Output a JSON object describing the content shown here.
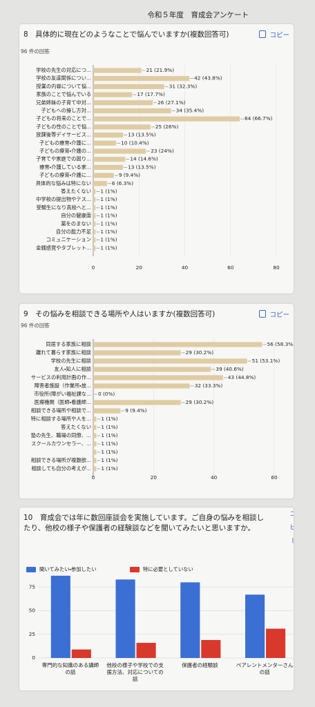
{
  "header": {
    "title": "令和５年度　育成会アンケート"
  },
  "chart_data": [
    {
      "type": "hbar",
      "title": "8　具体的に現在どのようなことで悩んでいますか(複数回答可)",
      "subtitle": "96 件の回答",
      "copy": "コピー",
      "categories": [
        "学校の先生の対応につ...",
        "学校の友達関係につい...",
        "授業の内容について悩...",
        "家族のことで悩んでいる",
        "兄弟姉妹の子育て中対...",
        "子どもへの接し方対...",
        "子どもの将来のことで...",
        "子どもの性のことで悩...",
        "放課後等デイサービス...",
        "子どもの療育・介護に...",
        "子どもの療育・介護の...",
        "子育てや家庭での困り...",
        "療育・介護している家...",
        "子どもの療育・介護に...",
        "具体的な悩みは特にない",
        "答えたくない",
        "中学校の提出物やテス...",
        "受験生になり高校へと...",
        "自分の健康面",
        "薬をのまない",
        "自分の能力不足",
        "コミュニケーション",
        "金銭感覚やタブレット..."
      ],
      "values": [
        21,
        42,
        31,
        17,
        26,
        34,
        64,
        25,
        13,
        10,
        23,
        14,
        13,
        9,
        6,
        1,
        1,
        1,
        1,
        1,
        1,
        1,
        1
      ],
      "value_labels": [
        "21 (21.9%)",
        "42 (43.8%)",
        "31 (32.3%)",
        "17 (17.7%)",
        "26 (27.1%)",
        "34 (35.4%)",
        "64 (66.7%)",
        "25 (26%)",
        "13 (13.5%)",
        "10 (10.4%)",
        "23 (24%)",
        "14 (14.6%)",
        "13 (13.5%)",
        "9 (9.4%)",
        "6 (6.3%)",
        "1 (1%)",
        "1 (1%)",
        "1 (1%)",
        "1 (1%)",
        "1 (1%)",
        "1 (1%)",
        "1 (1%)",
        "1 (1%)"
      ],
      "color": "#dfcca4",
      "xlim": [
        0,
        80
      ],
      "xticks": [
        0,
        20,
        40,
        60,
        80
      ],
      "grid": true
    },
    {
      "type": "hbar",
      "title": "9　その悩みを相談できる場所や人はいますか(複数回答可)",
      "subtitle": "96 件の回答",
      "copy": "コピー",
      "categories": [
        "同居する家族に相談",
        "離れて暮らす家族に相談",
        "学校の先生に相談",
        "友人・知人に相談",
        "サービスの利用計画の作...",
        "障害者施設（作業所・放...",
        "市役所(障がい福祉課な...",
        "医療機関（医師・看護師...",
        "相談できる場所や相談で...",
        "特に相談する場所や人を...",
        "答えたくない",
        "塾の先生、職場の同僚、...",
        "スクールカウンセラー、...",
        null,
        "相談できる場所が複数欲...",
        "相談しても自分の考えが..."
      ],
      "values": [
        56,
        29,
        51,
        39,
        43,
        32,
        0,
        29,
        9,
        1,
        1,
        1,
        1,
        1,
        1,
        1
      ],
      "value_labels": [
        "56 (58.3%)",
        "29 (30.2%)",
        "51 (53.1%)",
        "39 (40.6%)",
        "43 (44.8%)",
        "32 (33.3%)",
        "0 (0%)",
        "29 (30.2%)",
        "9 (9.4%)",
        "1 (1%)",
        "1 (1%)",
        "1 (1%)",
        "1 (1%)",
        "1 (1%)",
        "1 (1%)",
        "1 (1%)"
      ],
      "color": "#dfcca4",
      "xlim": [
        0,
        60
      ],
      "xticks": [
        0,
        20,
        40,
        60
      ],
      "grid": true
    },
    {
      "type": "bar",
      "title": "10　育成会では年に数回座談会を実施しています。ご自身の悩みを相談したり、他校の様子や保護者の経験談などを聞いてみたいと思いますか。",
      "copy": "コピー",
      "categories": [
        "専門的な知識のある講師の話",
        "他校の様子や学校での支援方法、対応についての話",
        "保護者の経験談",
        "ペアレントメンターさんの話"
      ],
      "series": [
        {
          "name": "聞いてみたい・参加したい",
          "color": "#3b6fd4",
          "values": [
            87,
            83,
            80,
            67
          ]
        },
        {
          "name": "特に必要としていない",
          "color": "#d8392c",
          "values": [
            9,
            16,
            19,
            31
          ]
        }
      ],
      "ylim": [
        0,
        92
      ],
      "yticks": [
        0,
        25,
        50,
        75
      ],
      "grid": true,
      "legend": "top"
    }
  ]
}
